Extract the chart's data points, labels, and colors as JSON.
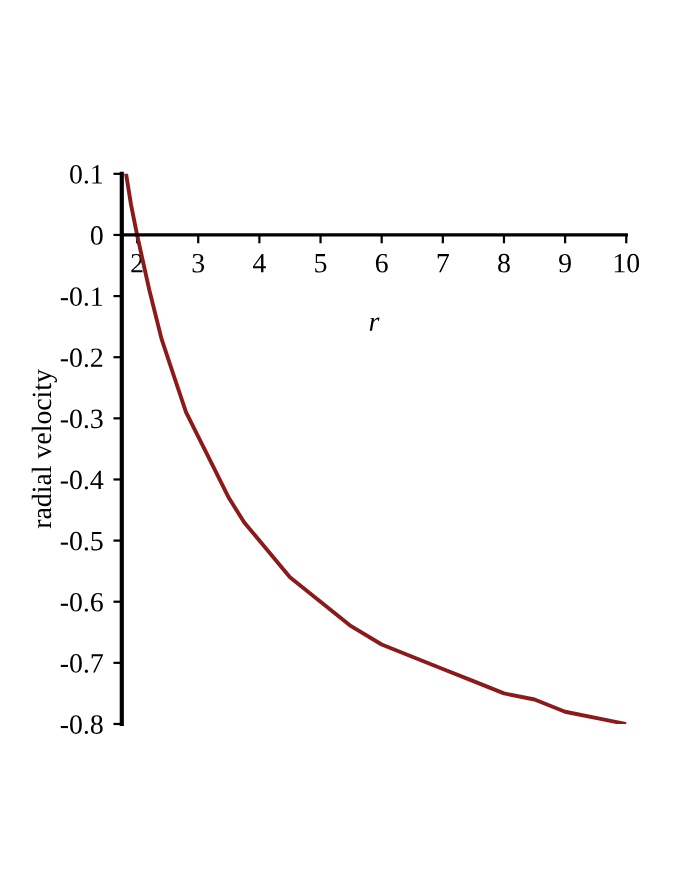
{
  "chart_data": {
    "type": "line",
    "xlabel": "r",
    "ylabel": "radial velocity",
    "x": [
      1.82,
      1.9,
      2,
      2.2,
      2.4,
      2.6,
      2.8,
      3,
      3.25,
      3.5,
      3.75,
      4,
      4.5,
      5,
      5.5,
      6,
      6.5,
      7,
      7.5,
      8,
      8.5,
      9,
      9.5,
      10
    ],
    "series": [
      {
        "color": "#8b1a1a",
        "values": [
          0.1,
          0.05,
          0,
          -0.09,
          -0.17,
          -0.23,
          -0.29,
          -0.33,
          -0.38,
          -0.43,
          -0.47,
          -0.5,
          -0.56,
          -0.6,
          -0.64,
          -0.67,
          -0.69,
          -0.71,
          -0.73,
          -0.75,
          -0.76,
          -0.78,
          -0.79,
          -0.8
        ]
      }
    ],
    "xlim": [
      1.75,
      10
    ],
    "ylim": [
      -0.8,
      0.1
    ],
    "xticks": [
      2,
      3,
      4,
      5,
      6,
      7,
      8,
      9,
      10
    ],
    "yticks": [
      -0.8,
      -0.7,
      -0.6,
      -0.5,
      -0.4,
      -0.3,
      -0.2,
      -0.1,
      0,
      0.1
    ],
    "grid": false,
    "legend": false,
    "marker": "none",
    "line_style": "solid"
  }
}
